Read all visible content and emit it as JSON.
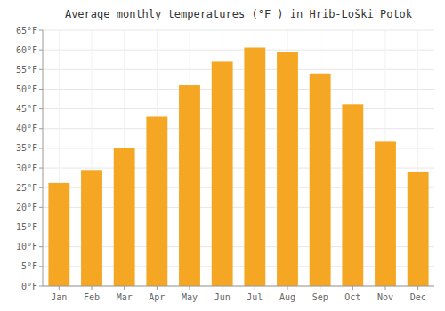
{
  "chart_data": {
    "type": "bar",
    "title": "Average monthly temperatures (°F ) in Hrib-Loški Potok",
    "categories": [
      "Jan",
      "Feb",
      "Mar",
      "Apr",
      "May",
      "Jun",
      "Jul",
      "Aug",
      "Sep",
      "Oct",
      "Nov",
      "Dec"
    ],
    "values": [
      26.2,
      29.5,
      35.2,
      43.0,
      51.0,
      57.0,
      60.6,
      59.5,
      54.0,
      46.2,
      36.7,
      28.9
    ],
    "color": "#F5A623",
    "ylim": [
      0,
      65
    ],
    "yticks": [
      {
        "value": 0,
        "label": "0°F"
      },
      {
        "value": 5,
        "label": "5°F"
      },
      {
        "value": 10,
        "label": "10°F"
      },
      {
        "value": 15,
        "label": "15°F"
      },
      {
        "value": 20,
        "label": "20°F"
      },
      {
        "value": 25,
        "label": "25°F"
      },
      {
        "value": 30,
        "label": "30°F"
      },
      {
        "value": 35,
        "label": "35°F"
      },
      {
        "value": 40,
        "label": "40°F"
      },
      {
        "value": 45,
        "label": "45°F"
      },
      {
        "value": 50,
        "label": "50°F"
      },
      {
        "value": 55,
        "label": "55°F"
      },
      {
        "value": 60,
        "label": "60°F"
      },
      {
        "value": 65,
        "label": "65°F"
      }
    ],
    "grid": true
  }
}
